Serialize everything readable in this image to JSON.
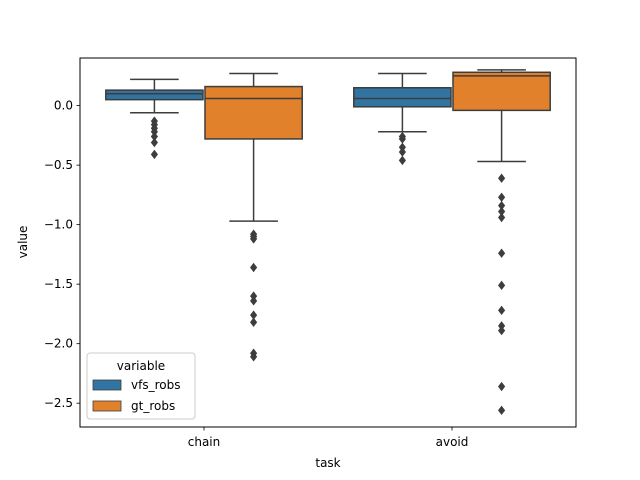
{
  "chart_data": {
    "type": "box",
    "xlabel": "task",
    "ylabel": "value",
    "categories": [
      "chain",
      "avoid"
    ],
    "ylim": [
      -2.7,
      0.4
    ],
    "yticks": [
      0.0,
      -0.5,
      -1.0,
      -1.5,
      -2.0,
      -2.5
    ],
    "ytick_labels": [
      "0.0",
      "−0.5",
      "−1.0",
      "−1.5",
      "−2.0",
      "−2.5"
    ],
    "legend": {
      "title": "variable",
      "placement": "lower-left",
      "entries": [
        "vfs_robs",
        "gt_robs"
      ]
    },
    "series": [
      {
        "name": "vfs_robs",
        "color": "#3274a1",
        "boxes": [
          {
            "whisker_low": -0.06,
            "q1": 0.05,
            "median": 0.1,
            "q3": 0.13,
            "whisker_high": 0.22,
            "outliers": [
              -0.13,
              -0.16,
              -0.19,
              -0.22,
              -0.26,
              -0.31,
              -0.41
            ]
          },
          {
            "whisker_low": -0.22,
            "q1": -0.01,
            "median": 0.06,
            "q3": 0.15,
            "whisker_high": 0.27,
            "outliers": [
              -0.26,
              -0.28,
              -0.35,
              -0.39,
              -0.46
            ]
          }
        ]
      },
      {
        "name": "gt_robs",
        "color": "#e1812c",
        "boxes": [
          {
            "whisker_low": -0.97,
            "q1": -0.28,
            "median": 0.06,
            "q3": 0.16,
            "whisker_high": 0.27,
            "outliers": [
              -1.08,
              -1.1,
              -1.12,
              -1.36,
              -1.6,
              -1.64,
              -1.76,
              -1.82,
              -2.08,
              -2.11
            ]
          },
          {
            "whisker_low": -0.47,
            "q1": -0.04,
            "median": 0.25,
            "q3": 0.28,
            "whisker_high": 0.3,
            "outliers": [
              -0.61,
              -0.77,
              -0.84,
              -0.89,
              -0.94,
              -1.24,
              -1.51,
              -1.72,
              -1.85,
              -1.89,
              -2.36,
              -2.56
            ]
          }
        ]
      }
    ]
  }
}
